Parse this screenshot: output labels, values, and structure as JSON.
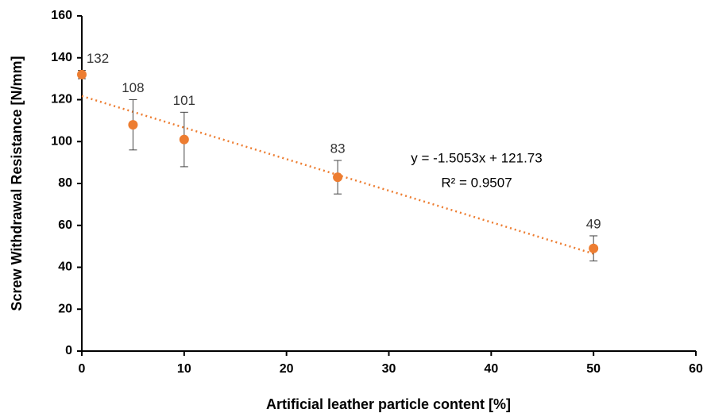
{
  "chart_data": {
    "type": "scatter",
    "x_label": "Artificial leather particle content [%]",
    "y_label": "Screw Withdrawal Resistance [N/mm]",
    "series": [
      {
        "name": "Screw withdrawal resistance",
        "color": "#ed7d31",
        "x": [
          0,
          5,
          10,
          25,
          50
        ],
        "values": [
          132,
          108,
          101,
          83,
          49
        ],
        "errors": [
          2,
          12,
          13,
          8,
          6
        ]
      }
    ],
    "trendline": {
      "slope": -1.5053,
      "intercept": 121.73,
      "color": "#ed7d31",
      "equation": "y = -1.5053x + 121.73",
      "r2": "R² = 0.9507"
    },
    "xlim": [
      0,
      60
    ],
    "xticks": [
      0,
      10,
      20,
      30,
      40,
      50,
      60
    ],
    "ylim": [
      0,
      160
    ],
    "yticks": [
      0,
      20,
      40,
      60,
      80,
      100,
      120,
      140,
      160
    ],
    "grid": false
  }
}
